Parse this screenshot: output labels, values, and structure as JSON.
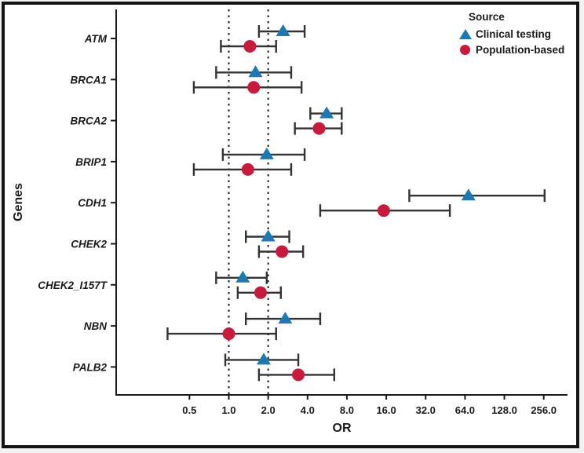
{
  "figure": {
    "title": "",
    "xlabel": "OR",
    "ylabel": "Genes"
  },
  "legend": {
    "title": "Source",
    "entries": [
      {
        "label": "Clinical testing",
        "marker": "triangle-icon",
        "color": "#1B79B3"
      },
      {
        "label": "Population-based",
        "marker": "circle-icon",
        "color": "#C91A3B"
      }
    ]
  },
  "colors": {
    "clinical": "#1B79B3",
    "population": "#C91A3B",
    "error_bar": "#333333",
    "axis": "#1a1a1a",
    "reference_line": "#1a1a1a",
    "frame_border": "#141414",
    "background": "#ffffff"
  },
  "chart_data": {
    "type": "scatter",
    "subtype": "forest-plot",
    "title": "",
    "xlabel": "OR",
    "ylabel": "Genes",
    "x_scale": "log2",
    "xlim": [
      0.35,
      300
    ],
    "grid": false,
    "legend_position": "top-right",
    "x_ticks": [
      {
        "v": 0.5,
        "label": "0.5"
      },
      {
        "v": 1.0,
        "label": "1.0"
      },
      {
        "v": 2.0,
        "label": "2.0"
      },
      {
        "v": 4.0,
        "label": "4.0"
      },
      {
        "v": 8.0,
        "label": "8.0"
      },
      {
        "v": 16.0,
        "label": "16.0"
      },
      {
        "v": 32.0,
        "label": "32.0"
      },
      {
        "v": 64.0,
        "label": "64.0"
      },
      {
        "v": 128.0,
        "label": "128.0"
      },
      {
        "v": 256.0,
        "label": "256.0"
      }
    ],
    "reference_lines": [
      1.0,
      2.0
    ],
    "categories": [
      "ATM",
      "BRCA1",
      "BRCA2",
      "BRIP1",
      "CDH1",
      "CHEK2",
      "CHEK2_I157T",
      "NBN",
      "PALB2"
    ],
    "series": [
      {
        "name": "Clinical testing",
        "marker": "triangle",
        "color": "#1B79B3",
        "points": [
          {
            "gene": "ATM",
            "or": 2.6,
            "ci_low": 1.7,
            "ci_high": 3.8
          },
          {
            "gene": "BRCA1",
            "or": 1.6,
            "ci_low": 0.8,
            "ci_high": 3.0
          },
          {
            "gene": "BRCA2",
            "or": 5.6,
            "ci_low": 4.2,
            "ci_high": 7.3
          },
          {
            "gene": "BRIP1",
            "or": 1.95,
            "ci_low": 0.9,
            "ci_high": 3.8
          },
          {
            "gene": "CDH1",
            "or": 68.0,
            "ci_low": 24.0,
            "ci_high": 260.0
          },
          {
            "gene": "CHEK2",
            "or": 2.0,
            "ci_low": 1.35,
            "ci_high": 2.9
          },
          {
            "gene": "CHEK2_I157T",
            "or": 1.28,
            "ci_low": 0.8,
            "ci_high": 1.95
          },
          {
            "gene": "NBN",
            "or": 2.7,
            "ci_low": 1.35,
            "ci_high": 5.0
          },
          {
            "gene": "PALB2",
            "or": 1.85,
            "ci_low": 0.94,
            "ci_high": 3.4
          }
        ]
      },
      {
        "name": "Population-based",
        "marker": "circle",
        "color": "#C91A3B",
        "points": [
          {
            "gene": "ATM",
            "or": 1.45,
            "ci_low": 0.87,
            "ci_high": 2.3
          },
          {
            "gene": "BRCA1",
            "or": 1.55,
            "ci_low": 0.54,
            "ci_high": 3.6
          },
          {
            "gene": "BRCA2",
            "or": 4.9,
            "ci_low": 3.2,
            "ci_high": 7.3
          },
          {
            "gene": "BRIP1",
            "or": 1.4,
            "ci_low": 0.54,
            "ci_high": 3.0
          },
          {
            "gene": "CDH1",
            "or": 15.3,
            "ci_low": 5.0,
            "ci_high": 49.0
          },
          {
            "gene": "CHEK2",
            "or": 2.55,
            "ci_low": 1.7,
            "ci_high": 3.7
          },
          {
            "gene": "CHEK2_I157T",
            "or": 1.75,
            "ci_low": 1.17,
            "ci_high": 2.5
          },
          {
            "gene": "NBN",
            "or": 1.0,
            "ci_low": 0.34,
            "ci_high": 2.3
          },
          {
            "gene": "PALB2",
            "or": 3.4,
            "ci_low": 1.7,
            "ci_high": 6.4
          }
        ]
      }
    ]
  }
}
